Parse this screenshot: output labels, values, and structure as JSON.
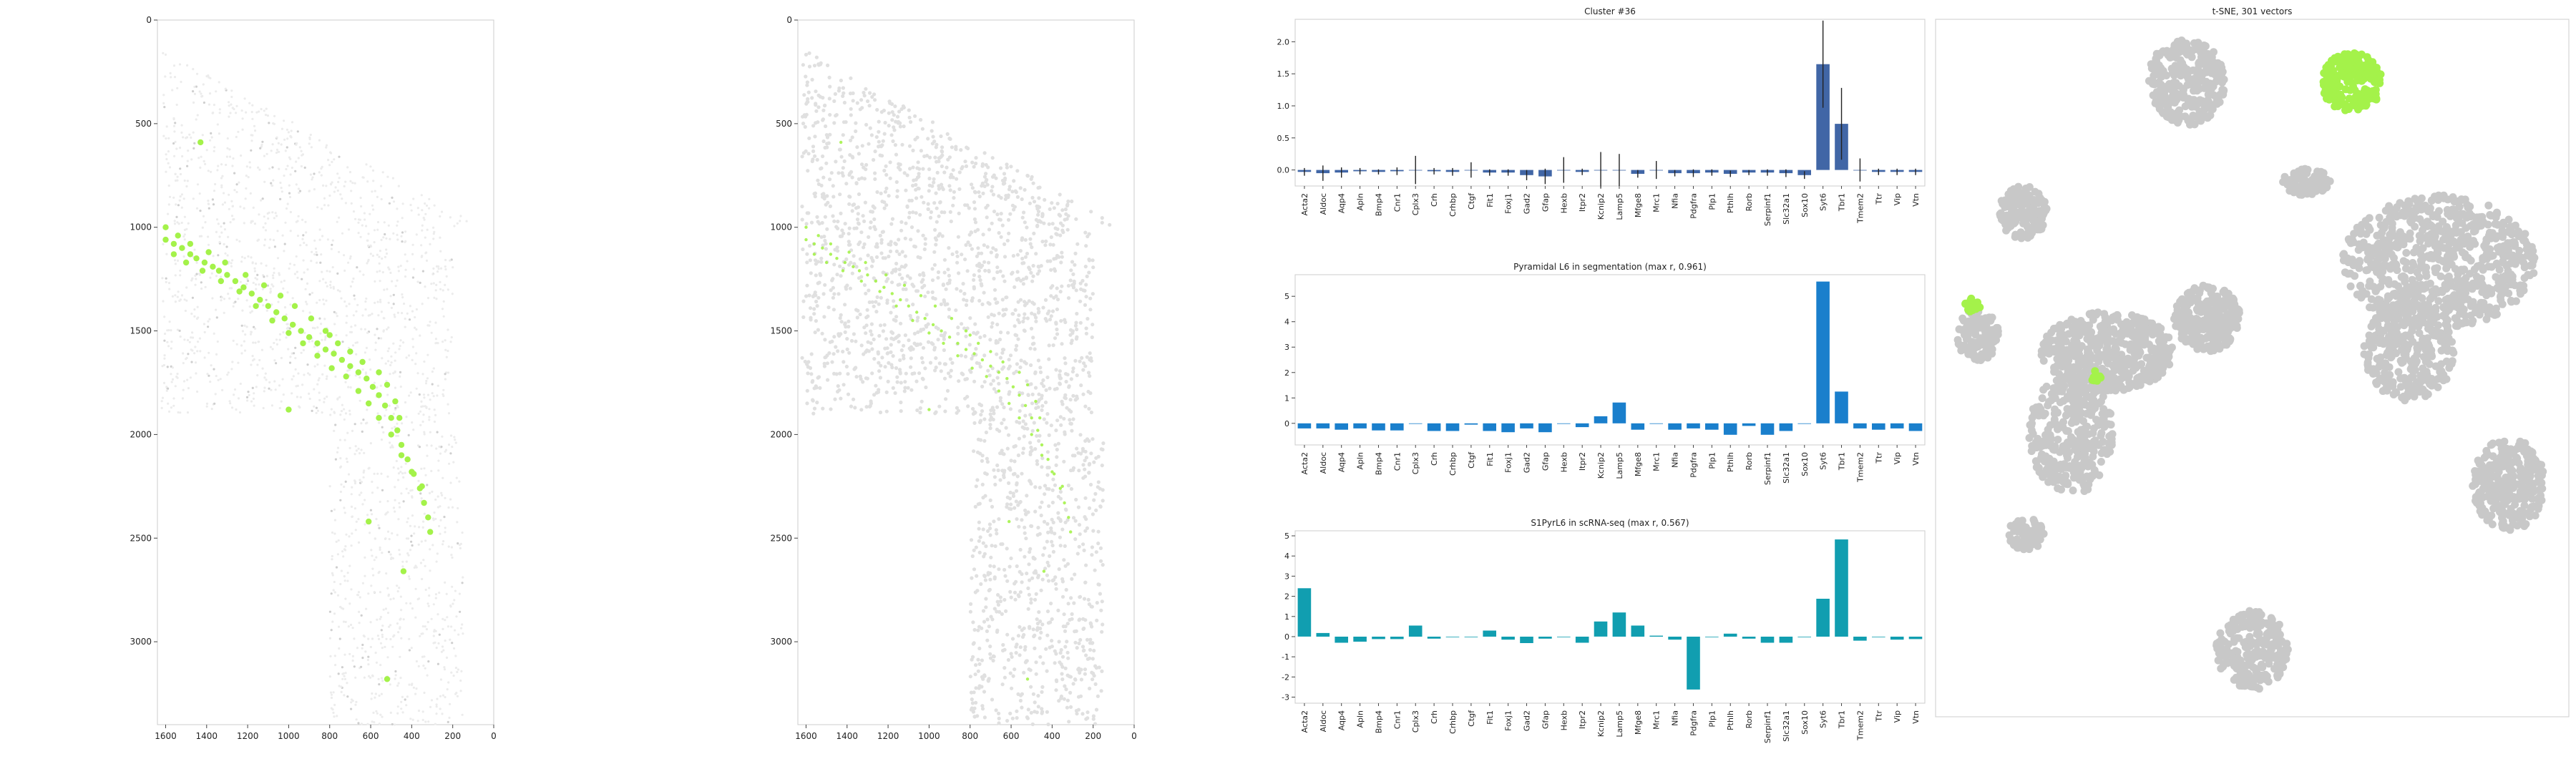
{
  "colors": {
    "highlight": "#a4f24a",
    "cell_gray": "#c8c8c8",
    "bar_cluster": "#4166a6",
    "bar_seg": "#1a7fcc",
    "bar_rna": "#119eb0",
    "frame": "#cccccc"
  },
  "genes": [
    "Acta2",
    "Aldoc",
    "Aqp4",
    "Apln",
    "Bmp4",
    "Cnr1",
    "Cplx3",
    "Crh",
    "Crhbp",
    "Ctgf",
    "Fit1",
    "Foxj1",
    "Gad2",
    "Gfap",
    "Hexb",
    "Itpr2",
    "Kcnip2",
    "Lamp5",
    "Mfge8",
    "Mrc1",
    "Nfia",
    "Pdgfra",
    "Plp1",
    "Pthlh",
    "Rorb",
    "Serpinf1",
    "Slc32a1",
    "Sox10",
    "Syt6",
    "Tbr1",
    "Tmem2",
    "Ttr",
    "Vip",
    "Vtn"
  ],
  "chart_data": [
    {
      "type": "scatter",
      "title": "",
      "x_ticks": [
        "1600",
        "1400",
        "1200",
        "1000",
        "800",
        "600",
        "400",
        "200",
        "0"
      ],
      "y_ticks": [
        "0",
        "500",
        "1000",
        "1500",
        "2000",
        "2500",
        "3000"
      ],
      "xlim": [
        1640,
        0
      ],
      "ylim": [
        3400,
        0
      ],
      "series": [
        {
          "role": "highlighted_cells",
          "points": [
            [
              1600,
              1060
            ],
            [
              1560,
              1080
            ],
            [
              1520,
              1100
            ],
            [
              1480,
              1130
            ],
            [
              1450,
              1150
            ],
            [
              1410,
              1170
            ],
            [
              1370,
              1190
            ],
            [
              1340,
              1210
            ],
            [
              1300,
              1230
            ],
            [
              1260,
              1260
            ],
            [
              1220,
              1290
            ],
            [
              1180,
              1320
            ],
            [
              1140,
              1350
            ],
            [
              1100,
              1380
            ],
            [
              1060,
              1410
            ],
            [
              1020,
              1440
            ],
            [
              980,
              1470
            ],
            [
              940,
              1500
            ],
            [
              900,
              1530
            ],
            [
              860,
              1560
            ],
            [
              820,
              1590
            ],
            [
              780,
              1610
            ],
            [
              740,
              1640
            ],
            [
              700,
              1670
            ],
            [
              660,
              1700
            ],
            [
              620,
              1730
            ],
            [
              590,
              1770
            ],
            [
              560,
              1810
            ],
            [
              530,
              1860
            ],
            [
              500,
              1920
            ],
            [
              470,
              1980
            ],
            [
              450,
              2050
            ],
            [
              420,
              2120
            ],
            [
              390,
              2190
            ],
            [
              360,
              2260
            ],
            [
              340,
              2330
            ],
            [
              320,
              2400
            ],
            [
              310,
              2470
            ],
            [
              440,
              2660
            ],
            [
              1560,
              1130
            ],
            [
              1500,
              1170
            ],
            [
              1420,
              1210
            ],
            [
              1330,
              1260
            ],
            [
              1240,
              1310
            ],
            [
              1160,
              1380
            ],
            [
              1080,
              1450
            ],
            [
              1000,
              1510
            ],
            [
              930,
              1560
            ],
            [
              860,
              1620
            ],
            [
              790,
              1680
            ],
            [
              720,
              1720
            ],
            [
              660,
              1790
            ],
            [
              610,
              1850
            ],
            [
              560,
              1920
            ],
            [
              500,
              2000
            ],
            [
              450,
              2100
            ],
            [
              400,
              2180
            ],
            [
              350,
              2250
            ],
            [
              1600,
              1000
            ],
            [
              1540,
              1040
            ],
            [
              1480,
              1080
            ],
            [
              1390,
              1120
            ],
            [
              1310,
              1170
            ],
            [
              1210,
              1230
            ],
            [
              1120,
              1280
            ],
            [
              1040,
              1330
            ],
            [
              970,
              1380
            ],
            [
              890,
              1440
            ],
            [
              820,
              1500
            ],
            [
              760,
              1560
            ],
            [
              700,
              1600
            ],
            [
              640,
              1650
            ],
            [
              560,
              1700
            ],
            [
              520,
              1760
            ],
            [
              480,
              1840
            ],
            [
              460,
              1920
            ],
            [
              1430,
              590
            ],
            [
              1000,
              1880
            ],
            [
              800,
              1520
            ],
            [
              610,
              2420
            ],
            [
              520,
              3180
            ]
          ]
        }
      ]
    },
    {
      "type": "scatter",
      "title": "",
      "x_ticks": [
        "1600",
        "1400",
        "1200",
        "1000",
        "800",
        "600",
        "400",
        "200",
        "0"
      ],
      "y_ticks": [
        "0",
        "500",
        "1000",
        "1500",
        "2000",
        "2500",
        "3000"
      ],
      "xlim": [
        1640,
        0
      ],
      "ylim": [
        3400,
        0
      ]
    },
    {
      "type": "bar",
      "title": "Cluster #36",
      "y_ticks": [
        "0.0",
        "0.5",
        "1.0",
        "1.5",
        "2.0"
      ],
      "ylim": [
        -0.25,
        2.35
      ],
      "values": [
        -0.03,
        -0.05,
        -0.04,
        -0.02,
        -0.03,
        -0.02,
        0.0,
        -0.02,
        -0.03,
        0.0,
        -0.04,
        -0.04,
        -0.08,
        -0.1,
        0.0,
        -0.03,
        0.0,
        0.0,
        -0.06,
        0.0,
        -0.05,
        -0.05,
        -0.04,
        -0.06,
        -0.04,
        -0.04,
        -0.05,
        -0.08,
        1.65,
        0.72,
        0.0,
        -0.03,
        -0.03,
        -0.03
      ],
      "errors": [
        0.06,
        0.12,
        0.08,
        0.05,
        0.04,
        0.06,
        0.22,
        0.05,
        0.06,
        0.12,
        0.05,
        0.05,
        0.08,
        0.12,
        0.2,
        0.05,
        0.28,
        0.25,
        0.06,
        0.14,
        0.05,
        0.06,
        0.05,
        0.05,
        0.04,
        0.05,
        0.06,
        0.06,
        0.68,
        0.56,
        0.18,
        0.05,
        0.05,
        0.05
      ]
    },
    {
      "type": "bar",
      "title": "Pyramidal L6 in segmentation (max r, 0.961)",
      "y_ticks": [
        "0",
        "1",
        "2",
        "3",
        "4",
        "5"
      ],
      "ylim": [
        -0.85,
        5.85
      ],
      "values": [
        -0.2,
        -0.2,
        -0.25,
        -0.2,
        -0.28,
        -0.28,
        0.0,
        -0.3,
        -0.3,
        -0.05,
        -0.3,
        -0.35,
        -0.2,
        -0.35,
        0.0,
        -0.15,
        0.28,
        0.82,
        -0.25,
        0.0,
        -0.25,
        -0.2,
        -0.25,
        -0.45,
        -0.1,
        -0.45,
        -0.3,
        0.0,
        5.58,
        1.25,
        -0.2,
        -0.25,
        -0.2,
        -0.3
      ]
    },
    {
      "type": "bar",
      "title": "S1PyrL6 in scRNA-seq (max r, 0.567)",
      "y_ticks": [
        "-3",
        "-2",
        "-1",
        "0",
        "1",
        "2",
        "3",
        "4",
        "5"
      ],
      "ylim": [
        -3.3,
        5.25
      ],
      "values": [
        2.4,
        0.18,
        -0.3,
        -0.25,
        -0.12,
        -0.12,
        0.55,
        -0.1,
        0.0,
        0.0,
        0.3,
        -0.15,
        -0.32,
        -0.1,
        0.0,
        -0.3,
        0.75,
        1.2,
        0.55,
        0.05,
        -0.15,
        -2.62,
        0.0,
        0.15,
        -0.1,
        -0.3,
        -0.3,
        0.0,
        1.88,
        4.82,
        -0.2,
        0.0,
        -0.15,
        -0.12
      ]
    },
    {
      "type": "scatter",
      "title": "t-SNE, 301 vectors",
      "clusters": [
        {
          "highlighted": false,
          "cx": -0.22,
          "cy": 0.86,
          "rx": 0.13,
          "ry": 0.13,
          "n": 280
        },
        {
          "highlighted": true,
          "cx": 0.33,
          "cy": 0.86,
          "rx": 0.1,
          "ry": 0.09,
          "n": 200
        },
        {
          "highlighted": false,
          "cx": 0.18,
          "cy": 0.56,
          "rx": 0.08,
          "ry": 0.04,
          "n": 90
        },
        {
          "highlighted": false,
          "cx": -0.76,
          "cy": 0.47,
          "rx": 0.08,
          "ry": 0.08,
          "n": 140
        },
        {
          "highlighted": false,
          "cx": 0.62,
          "cy": 0.32,
          "rx": 0.32,
          "ry": 0.2,
          "n": 700
        },
        {
          "highlighted": false,
          "cx": 0.52,
          "cy": 0.05,
          "rx": 0.15,
          "ry": 0.15,
          "n": 300
        },
        {
          "highlighted": false,
          "cx": -0.91,
          "cy": 0.1,
          "rx": 0.07,
          "ry": 0.08,
          "n": 130
        },
        {
          "highlighted": true,
          "cx": -0.93,
          "cy": 0.19,
          "rx": 0.03,
          "ry": 0.02,
          "n": 14
        },
        {
          "highlighted": false,
          "cx": -0.15,
          "cy": 0.15,
          "rx": 0.11,
          "ry": 0.1,
          "n": 300
        },
        {
          "highlighted": false,
          "cx": -0.48,
          "cy": 0.05,
          "rx": 0.22,
          "ry": 0.12,
          "n": 450
        },
        {
          "highlighted": false,
          "cx": -0.6,
          "cy": -0.2,
          "rx": 0.14,
          "ry": 0.18,
          "n": 330
        },
        {
          "highlighted": true,
          "cx": -0.52,
          "cy": -0.02,
          "rx": 0.02,
          "ry": 0.02,
          "n": 10
        },
        {
          "highlighted": false,
          "cx": 0.85,
          "cy": -0.35,
          "rx": 0.12,
          "ry": 0.14,
          "n": 300
        },
        {
          "highlighted": false,
          "cx": -0.75,
          "cy": -0.5,
          "rx": 0.06,
          "ry": 0.05,
          "n": 80
        },
        {
          "highlighted": false,
          "cx": 0.0,
          "cy": -0.85,
          "rx": 0.12,
          "ry": 0.12,
          "n": 240
        }
      ]
    }
  ]
}
